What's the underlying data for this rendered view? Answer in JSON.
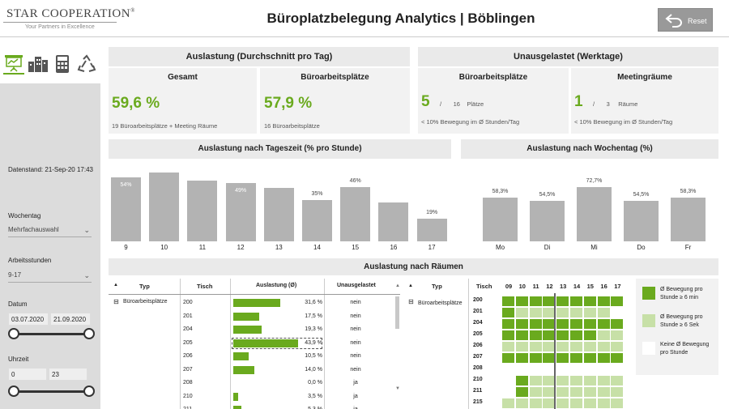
{
  "app": {
    "logo": "STAR COOPERATION",
    "logo_mark": "®",
    "logo_sub": "Your Partners in Excellence",
    "title": "Büroplatzbelegung Analytics | Böblingen",
    "reset": "Reset"
  },
  "sidebar": {
    "datenstand": "Datenstand: 21-Sep-20 17:43",
    "wochentag_label": "Wochentag",
    "wochentag_value": "Mehrfachauswahl",
    "arbeitsstunden_label": "Arbeitsstunden",
    "arbeitsstunden_value": "9-17",
    "datum_label": "Datum",
    "datum_from": "03.07.2020",
    "datum_to": "21.09.2020",
    "uhrzeit_label": "Uhrzeit",
    "uhrzeit_from": "0",
    "uhrzeit_to": "23"
  },
  "auslastung": {
    "header": "Auslastung (Durchschnitt pro Tag)",
    "gesamt_title": "Gesamt",
    "gesamt_value": "59,6 %",
    "gesamt_sub": "19 Büroarbeitsplätze + Meeting Räume",
    "buero_title": "Büroarbeitsplätze",
    "buero_value": "57,9 %",
    "buero_sub": "16 Büroarbeitsplätze"
  },
  "unausgelastet": {
    "header": "Unausgelastet (Werktage)",
    "buero_title": "Büroarbeitsplätze",
    "buero_value": "5",
    "buero_sep": "/",
    "buero_total": "16",
    "buero_unit": "Plätze",
    "buero_sub": "< 10% Bewegung im Ø Stunden/Tag",
    "meet_title": "Meetingräume",
    "meet_value": "1",
    "meet_sep": "/",
    "meet_total": "3",
    "meet_unit": "Räume",
    "meet_sub": "< 10% Bewegung im Ø Stunden/Tag"
  },
  "chart_data": [
    {
      "type": "bar",
      "title": "Auslastung nach Tageszeit (% pro Stunde)",
      "categories": [
        "9",
        "10",
        "11",
        "12",
        "13",
        "14",
        "15",
        "16",
        "17"
      ],
      "values": [
        54,
        58,
        51,
        49,
        45,
        35,
        46,
        33,
        19
      ],
      "labels": [
        "54%",
        "",
        "",
        "49%",
        "",
        "35%",
        "46%",
        "",
        "19%"
      ],
      "ylim": [
        0,
        60
      ]
    },
    {
      "type": "bar",
      "title": "Auslastung nach Wochentag (%)",
      "categories": [
        "Mo",
        "Di",
        "Mi",
        "Do",
        "Fr"
      ],
      "values": [
        58.3,
        54.5,
        72.7,
        54.5,
        58.3
      ],
      "labels": [
        "58,3%",
        "54,5%",
        "72,7%",
        "54,5%",
        "58,3%"
      ],
      "ylim": [
        0,
        95
      ]
    }
  ],
  "raeume": {
    "header": "Auslastung nach Räumen",
    "col_typ": "Typ",
    "col_tisch": "Tisch",
    "col_ausl": "Auslastung (Ø)",
    "col_unaus": "Unausgelastet",
    "group": "Büroarbeitsplätze",
    "group2": "Büroarbeitsplätze",
    "rows": [
      {
        "tisch": "200",
        "pct": 31.6,
        "label": "31,6 %",
        "unaus": "nein"
      },
      {
        "tisch": "201",
        "pct": 17.5,
        "label": "17,5 %",
        "unaus": "nein"
      },
      {
        "tisch": "204",
        "pct": 19.3,
        "label": "19,3 %",
        "unaus": "nein"
      },
      {
        "tisch": "205",
        "pct": 43.9,
        "label": "43,9 %",
        "unaus": "nein"
      },
      {
        "tisch": "206",
        "pct": 10.5,
        "label": "10,5 %",
        "unaus": "nein"
      },
      {
        "tisch": "207",
        "pct": 14.0,
        "label": "14,0 %",
        "unaus": "nein"
      },
      {
        "tisch": "208",
        "pct": 0,
        "label": "0,0 %",
        "unaus": "ja"
      },
      {
        "tisch": "210",
        "pct": 3.5,
        "label": "3,5 %",
        "unaus": "ja"
      },
      {
        "tisch": "211",
        "pct": 5.3,
        "label": "5,3 %",
        "unaus": "ja"
      }
    ],
    "hours": [
      "09",
      "10",
      "11",
      "12",
      "13",
      "14",
      "15",
      "16",
      "17"
    ],
    "heat": [
      {
        "t": "200",
        "c": [
          1,
          1,
          1,
          1,
          1,
          1,
          1,
          1,
          1
        ]
      },
      {
        "t": "201",
        "c": [
          1,
          2,
          2,
          2,
          2,
          2,
          2,
          2,
          0
        ]
      },
      {
        "t": "204",
        "c": [
          1,
          1,
          1,
          1,
          1,
          1,
          1,
          1,
          1
        ]
      },
      {
        "t": "205",
        "c": [
          1,
          1,
          1,
          1,
          1,
          1,
          1,
          2,
          2
        ]
      },
      {
        "t": "206",
        "c": [
          2,
          2,
          2,
          2,
          2,
          2,
          2,
          2,
          2
        ]
      },
      {
        "t": "207",
        "c": [
          1,
          1,
          1,
          1,
          1,
          1,
          1,
          1,
          1
        ]
      },
      {
        "t": "208",
        "c": [
          0,
          0,
          0,
          0,
          0,
          0,
          0,
          0,
          0
        ]
      },
      {
        "t": "210",
        "c": [
          0,
          1,
          2,
          2,
          2,
          2,
          2,
          2,
          2
        ]
      },
      {
        "t": "211",
        "c": [
          0,
          1,
          2,
          2,
          2,
          2,
          2,
          2,
          2
        ]
      },
      {
        "t": "215",
        "c": [
          2,
          2,
          2,
          2,
          2,
          2,
          2,
          2,
          2
        ]
      }
    ],
    "legend": [
      {
        "cls": "g1",
        "text": "Ø Bewegung pro Stunde ≥ 6 min"
      },
      {
        "cls": "g2",
        "text": "Ø Bewegung pro Stunde ≥ 6 Sek"
      },
      {
        "cls": "g0",
        "text": "Keine Ø Bewegung pro Stunde"
      }
    ]
  }
}
